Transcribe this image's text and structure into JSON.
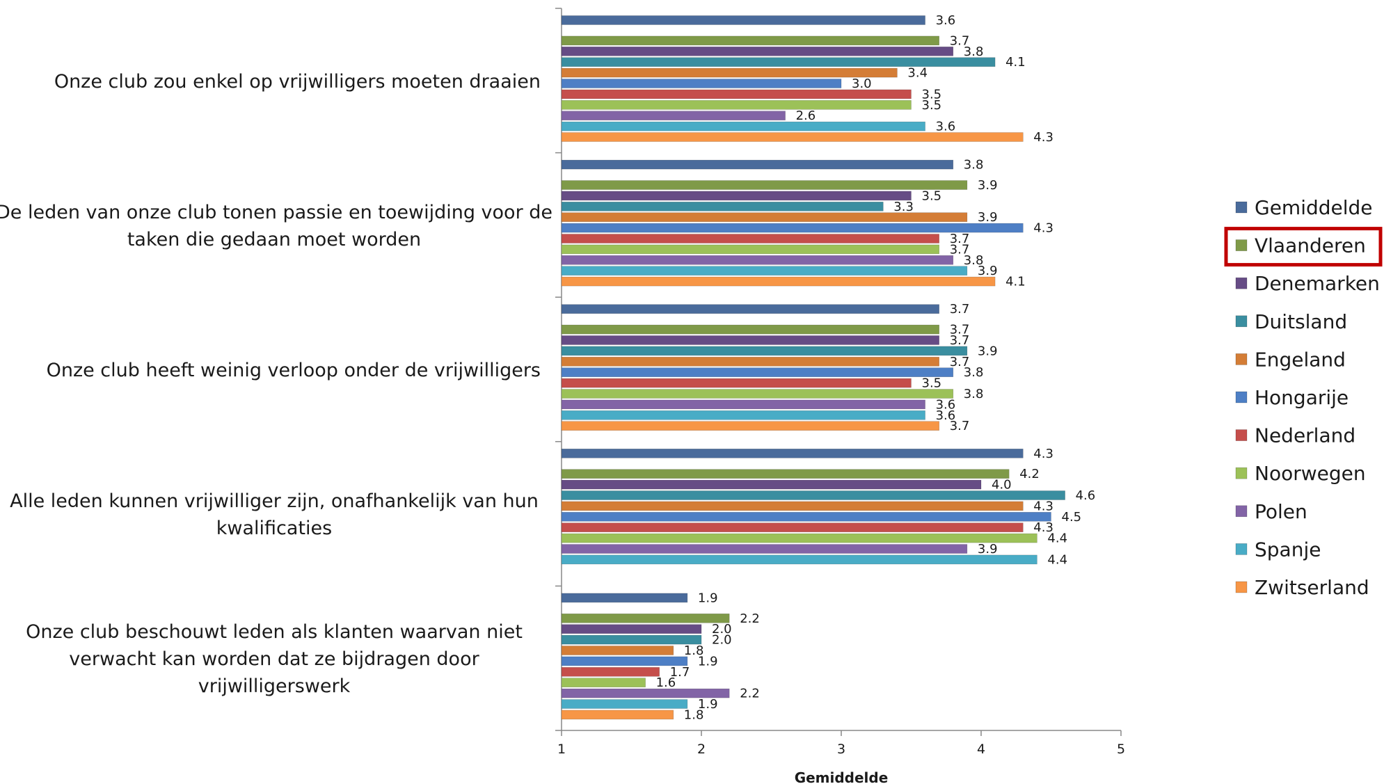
{
  "chart_data": {
    "type": "bar",
    "orientation": "horizontal",
    "title": "",
    "xlabel": "Gemiddelde",
    "ylabel": "",
    "xlim": [
      1,
      5
    ],
    "xticks": [
      "1",
      "2",
      "3",
      "4",
      "5"
    ],
    "grid": false,
    "legend_position": "right",
    "highlighted_series": "Vlaanderen",
    "categories": [
      "Onze club zou enkel op vrijwilligers moeten draaien",
      "De leden van onze club tonen passie en toewijding voor de taken die gedaan moet worden",
      "Onze club heeft weinig verloop onder de vrijwilligers",
      "Alle leden kunnen vrijwilliger zijn, onafhankelijk van hun kwalificaties",
      "Onze club beschouwt leden als klanten waarvan niet verwacht kan worden dat ze bijdragen door vrijwilligerswerk"
    ],
    "category_lines": [
      [
        "Onze club zou enkel op vrijwilligers moeten draaien"
      ],
      [
        "De leden van onze club tonen passie en toewijding voor de",
        "taken die gedaan moet worden"
      ],
      [
        "Onze club heeft weinig verloop onder de vrijwilligers"
      ],
      [
        "Alle leden kunnen vrijwilliger zijn, onafhankelijk van hun",
        "kwalificaties"
      ],
      [
        "Onze club beschouwt leden als klanten waarvan niet",
        "verwacht kan worden dat ze bijdragen door",
        "vrijwilligerswerk"
      ]
    ],
    "series": [
      {
        "name": "Gemiddelde",
        "color": "#4a6b9b",
        "values": [
          3.6,
          3.8,
          3.7,
          4.3,
          1.9
        ]
      },
      {
        "name": "Vlaanderen",
        "color": "#7f9a48",
        "values": [
          3.7,
          3.9,
          3.7,
          4.2,
          2.2
        ]
      },
      {
        "name": "Denemarken",
        "color": "#664c85",
        "values": [
          3.8,
          3.5,
          3.7,
          4.0,
          2.0
        ]
      },
      {
        "name": "Duitsland",
        "color": "#3a8ea0",
        "values": [
          4.1,
          3.3,
          3.9,
          4.6,
          2.0
        ]
      },
      {
        "name": "Engeland",
        "color": "#d47d36",
        "values": [
          3.4,
          3.9,
          3.7,
          4.3,
          1.8
        ]
      },
      {
        "name": "Hongarije",
        "color": "#4e7fc5",
        "values": [
          3.0,
          4.3,
          3.8,
          4.5,
          1.9
        ]
      },
      {
        "name": "Nederland",
        "color": "#c54e4b",
        "values": [
          3.5,
          3.7,
          3.5,
          4.3,
          1.7
        ]
      },
      {
        "name": "Noorwegen",
        "color": "#9cc158",
        "values": [
          3.5,
          3.7,
          3.8,
          4.4,
          1.6
        ]
      },
      {
        "name": "Polen",
        "color": "#8264a6",
        "values": [
          2.6,
          3.8,
          3.6,
          3.9,
          2.2
        ]
      },
      {
        "name": "Spanje",
        "color": "#49acc6",
        "values": [
          3.6,
          3.9,
          3.6,
          4.4,
          1.9
        ]
      },
      {
        "name": "Zwitserland",
        "color": "#f79646",
        "values": [
          4.3,
          4.1,
          3.7,
          null,
          1.8
        ]
      }
    ]
  }
}
